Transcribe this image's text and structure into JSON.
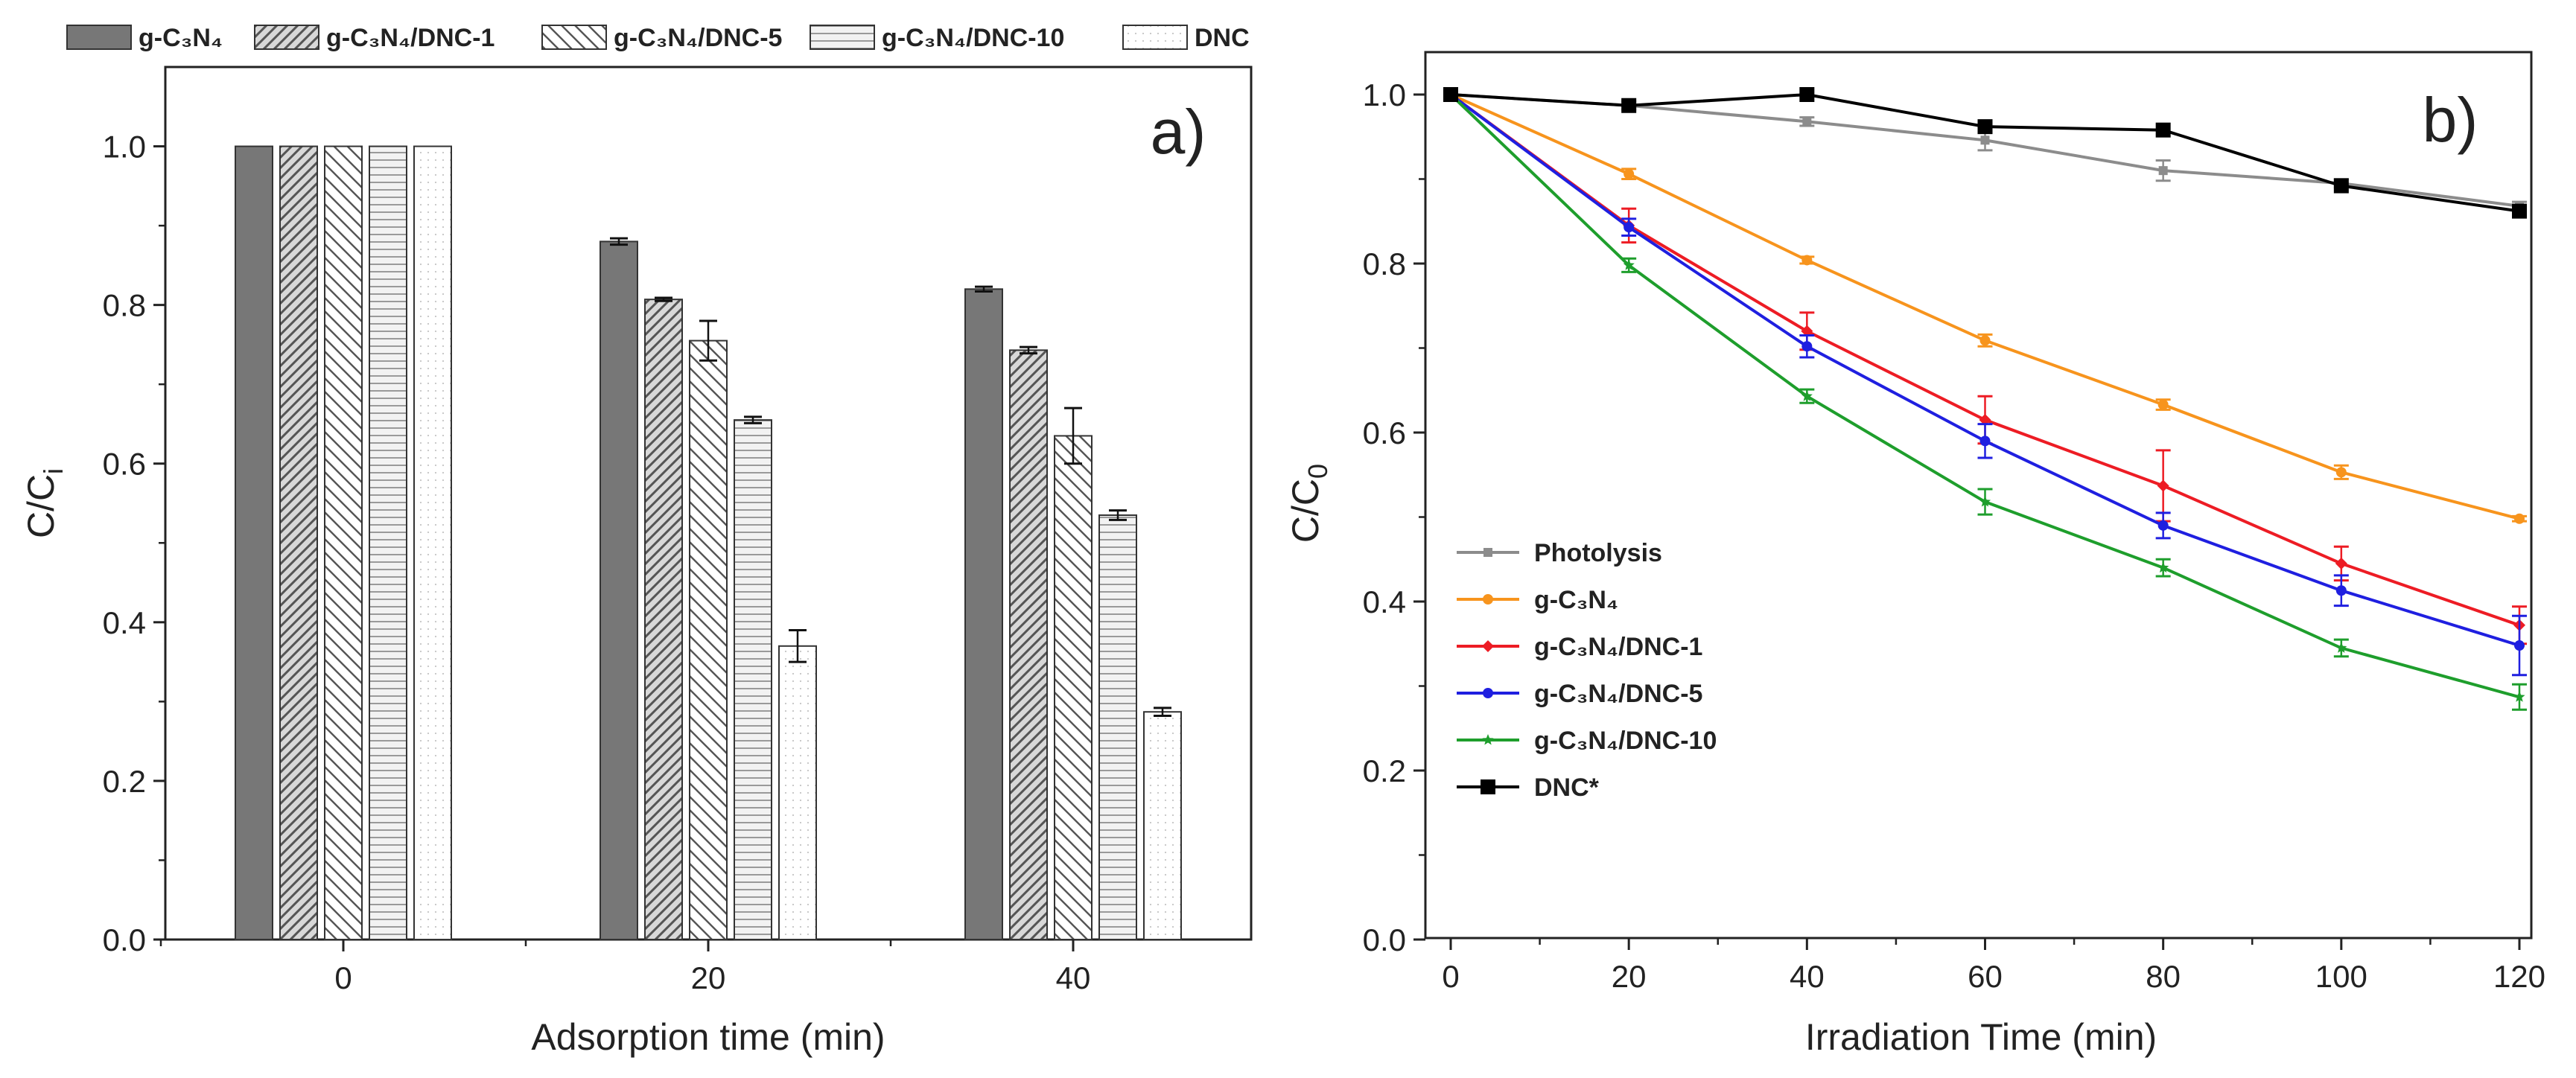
{
  "chart_data": [
    {
      "type": "bar",
      "panel_label": "a)",
      "title": "",
      "xlabel": "Adsorption time (min)",
      "ylabel": "C/C",
      "ylabel_sub": "i",
      "categories": [
        "0",
        "20",
        "40"
      ],
      "ylim": [
        0,
        1.1
      ],
      "yticks": [
        "0.0",
        "0.2",
        "0.4",
        "0.6",
        "0.8",
        "1.0"
      ],
      "legend_position": "top",
      "series": [
        {
          "name": "g-C₃N₄",
          "values": [
            1.0,
            0.88,
            0.82
          ],
          "errors": [
            0,
            0.004,
            0.003
          ],
          "pattern": "solid"
        },
        {
          "name": "g-C₃N₄/DNC-1",
          "values": [
            1.0,
            0.807,
            0.743
          ],
          "errors": [
            0,
            0.002,
            0.004
          ],
          "pattern": "dense-diag"
        },
        {
          "name": "g-C₃N₄/DNC-5",
          "values": [
            1.0,
            0.755,
            0.635
          ],
          "errors": [
            0,
            0.025,
            0.035
          ],
          "pattern": "back-diag"
        },
        {
          "name": "g-C₃N₄/DNC-10",
          "values": [
            1.0,
            0.655,
            0.535
          ],
          "errors": [
            0,
            0.004,
            0.006
          ],
          "pattern": "horizontal"
        },
        {
          "name": "DNC",
          "values": [
            1.0,
            0.37,
            0.287
          ],
          "errors": [
            0,
            0.02,
            0.005
          ],
          "pattern": "dotted"
        }
      ]
    },
    {
      "type": "line",
      "panel_label": "b)",
      "title": "",
      "xlabel": "Irradiation Time (min)",
      "ylabel": "C/C",
      "ylabel_sub": "0",
      "x": [
        0,
        20,
        40,
        60,
        80,
        100,
        120
      ],
      "xlim": [
        0,
        120
      ],
      "ylim": [
        0,
        1.0
      ],
      "xticks": [
        "0",
        "20",
        "40",
        "60",
        "80",
        "100",
        "120"
      ],
      "yticks": [
        "0.0",
        "0.2",
        "0.4",
        "0.6",
        "0.8",
        "1.0"
      ],
      "legend_position": "center-left",
      "series": [
        {
          "name": "Photolysis",
          "color": "#8c8c8c",
          "marker": "square-small",
          "values": [
            1.0,
            0.987,
            0.968,
            0.946,
            0.91,
            0.895,
            0.868
          ],
          "errors": [
            0,
            0.005,
            0.005,
            0.012,
            0.012,
            0.005,
            0.005
          ]
        },
        {
          "name": "g-C₃N₄",
          "color": "#f7941d",
          "marker": "circle",
          "values": [
            1.0,
            0.906,
            0.804,
            0.709,
            0.633,
            0.553,
            0.498
          ],
          "errors": [
            0,
            0.006,
            0.004,
            0.007,
            0.006,
            0.008,
            0.003
          ]
        },
        {
          "name": "g-C₃N₄/DNC-1",
          "color": "#ed1c24",
          "marker": "diamond",
          "values": [
            1.0,
            0.845,
            0.72,
            0.615,
            0.537,
            0.445,
            0.372
          ],
          "errors": [
            0,
            0.02,
            0.022,
            0.028,
            0.042,
            0.02,
            0.022
          ]
        },
        {
          "name": "g-C₃N₄/DNC-5",
          "color": "#1f1fe0",
          "marker": "circle",
          "values": [
            1.0,
            0.843,
            0.702,
            0.59,
            0.49,
            0.413,
            0.348
          ],
          "errors": [
            0,
            0.01,
            0.013,
            0.02,
            0.015,
            0.018,
            0.035
          ]
        },
        {
          "name": "g-C₃N₄/DNC-10",
          "color": "#1e9e2c",
          "marker": "star",
          "values": [
            1.0,
            0.798,
            0.643,
            0.518,
            0.44,
            0.345,
            0.287
          ],
          "errors": [
            0,
            0.008,
            0.008,
            0.015,
            0.01,
            0.01,
            0.015
          ]
        },
        {
          "name": "DNC*",
          "color": "#000000",
          "marker": "square",
          "values": [
            1.0,
            0.987,
            1.0,
            0.962,
            0.958,
            0.892,
            0.862
          ],
          "errors": [
            0,
            0,
            0,
            0,
            0,
            0,
            0
          ]
        }
      ]
    }
  ]
}
